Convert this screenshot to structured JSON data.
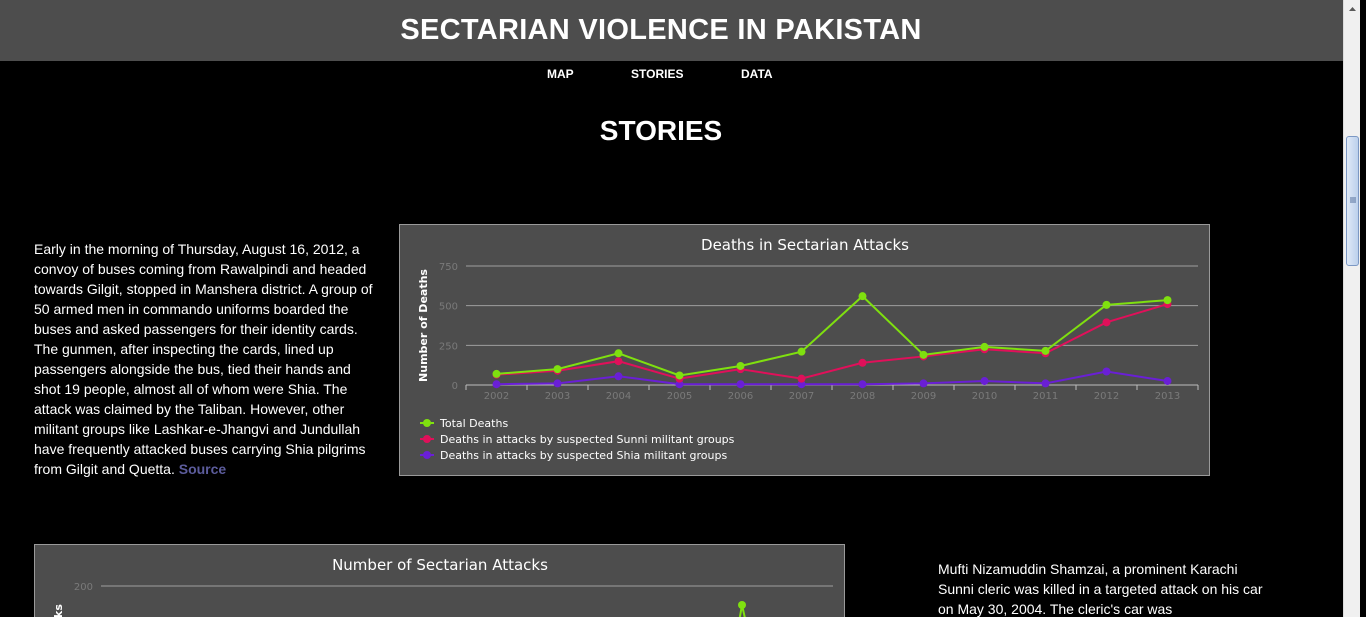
{
  "header": {
    "title": "SECTARIAN VIOLENCE IN PAKISTAN"
  },
  "nav": {
    "map": "MAP",
    "stories": "STORIES",
    "data": "DATA"
  },
  "section_title": "STORIES",
  "story1": {
    "text": "Early in the morning of Thursday, August 16, 2012, a convoy of buses coming from Rawalpindi and headed towards Gilgit, stopped in Manshera district. A group of 50 armed men in commando uniforms boarded the buses and asked passengers for their identity cards. The gunmen, after inspecting the cards, lined up passengers alongside the bus, tied their hands and shot 19 people, almost all of whom were Shia. The attack was claimed by the Taliban. However, other militant groups like Lashkar-e-Jhangvi and Jundullah have frequently attacked buses carrying Shia pilgrims from Gilgit and Quetta.",
    "source_label": "Source"
  },
  "story2": {
    "text": "Mufti Nizamuddin Shamzai, a prominent Karachi Sunni cleric was killed in a targeted attack on his car on May 30, 2004. The cleric's car was"
  },
  "colors": {
    "header_bg": "#4d4d4d",
    "chart_bg": "#4d4d4d",
    "total": "#7fe00f",
    "sunni": "#e0105a",
    "shia": "#6a1fd6",
    "source_link": "#5c5c9c"
  },
  "chart_data": [
    {
      "type": "line",
      "title": "Deaths in Sectarian Attacks",
      "xlabel": "",
      "ylabel": "Number of Deaths",
      "categories": [
        "2002",
        "2003",
        "2004",
        "2005",
        "2006",
        "2007",
        "2008",
        "2009",
        "2010",
        "2011",
        "2012",
        "2013"
      ],
      "yticks": [
        0,
        250,
        500,
        750
      ],
      "ylim": [
        0,
        750
      ],
      "grid": true,
      "legend_placement": "bottom-left",
      "series": [
        {
          "name": "Total Deaths",
          "color": "#7fe00f",
          "values": [
            70,
            100,
            200,
            60,
            120,
            210,
            560,
            190,
            240,
            215,
            505,
            535
          ]
        },
        {
          "name": "Deaths in attacks by suspected Sunni militant groups",
          "color": "#e0105a",
          "values": [
            65,
            90,
            150,
            40,
            100,
            40,
            140,
            180,
            225,
            200,
            395,
            510
          ]
        },
        {
          "name": "Deaths in attacks by suspected Shia militant groups",
          "color": "#6a1fd6",
          "values": [
            5,
            10,
            55,
            5,
            5,
            5,
            5,
            10,
            25,
            10,
            85,
            25
          ]
        }
      ]
    },
    {
      "type": "line",
      "title": "Number of Sectarian Attacks",
      "ylabel": "ks",
      "yticks": [
        200
      ],
      "ylim": [
        0,
        200
      ],
      "grid": true,
      "series": [
        {
          "name": "",
          "color": "#7fe00f",
          "values": []
        }
      ]
    }
  ]
}
